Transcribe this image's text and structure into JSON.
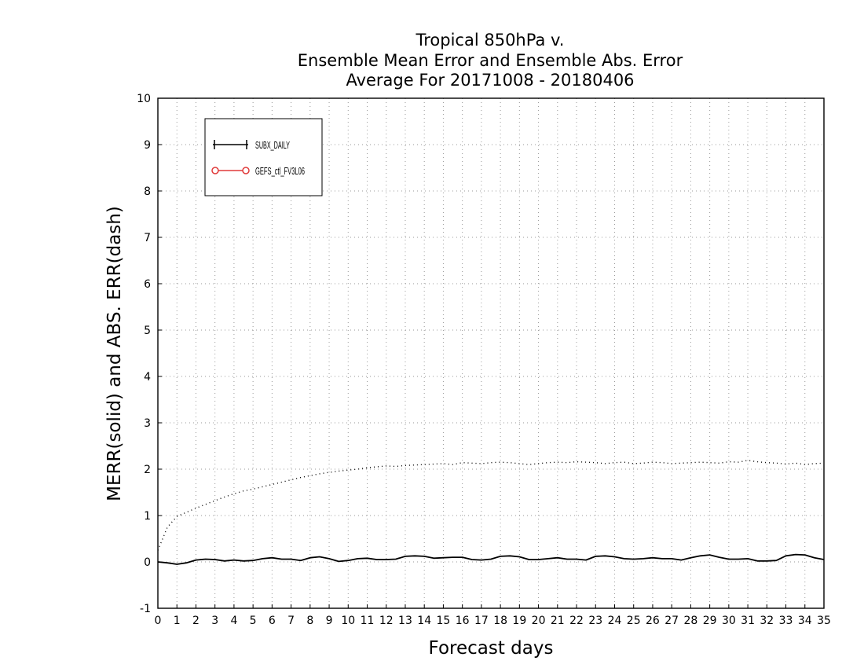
{
  "chart_data": {
    "type": "line",
    "title_lines": [
      "Tropical 850hPa v.",
      "Ensemble Mean Error and Ensemble Abs. Error",
      "Average For 20171008 - 20180406"
    ],
    "xlabel": "Forecast days",
    "ylabel": "MERR(solid) and ABS. ERR(dash)",
    "xlim": [
      0,
      35
    ],
    "ylim": [
      -1,
      10
    ],
    "xticks": [
      "0",
      "1",
      "2",
      "3",
      "4",
      "5",
      "6",
      "7",
      "8",
      "9",
      "10",
      "11",
      "12",
      "13",
      "14",
      "15",
      "16",
      "17",
      "18",
      "19",
      "20",
      "21",
      "22",
      "23",
      "24",
      "25",
      "26",
      "27",
      "28",
      "29",
      "30",
      "31",
      "32",
      "33",
      "34",
      "35"
    ],
    "yticks": [
      "-1",
      "0",
      "1",
      "2",
      "3",
      "4",
      "5",
      "6",
      "7",
      "8",
      "9",
      "10"
    ],
    "grid": true,
    "legend_position": "top-left",
    "legend": [
      {
        "label": "SUBX_DAILY",
        "color": "#000000",
        "marker": "plus"
      },
      {
        "label": "GEFS_ctl_FV3L06",
        "color": "#e03a3a",
        "marker": "circle"
      }
    ],
    "series": [
      {
        "name": "SUBX_DAILY",
        "style": "solid",
        "color": "#000000",
        "x": [
          0,
          0.5,
          1,
          1.5,
          2,
          2.5,
          3,
          3.5,
          4,
          4.5,
          5,
          5.5,
          6,
          6.5,
          7,
          7.5,
          8,
          8.5,
          9,
          9.5,
          10,
          10.5,
          11,
          11.5,
          12,
          12.5,
          13,
          13.5,
          14,
          14.5,
          15,
          15.5,
          16,
          16.5,
          17,
          17.5,
          18,
          18.5,
          19,
          19.5,
          20,
          20.5,
          21,
          21.5,
          22,
          22.5,
          23,
          23.5,
          24,
          24.5,
          25,
          25.5,
          26,
          26.5,
          27,
          27.5,
          28,
          28.5,
          29,
          29.5,
          30,
          30.5,
          31,
          31.5,
          32,
          32.5,
          33,
          33.5,
          34,
          34.5,
          35
        ],
        "y": [
          0.0,
          -0.02,
          -0.05,
          -0.02,
          0.04,
          0.06,
          0.05,
          0.02,
          0.04,
          0.02,
          0.03,
          0.07,
          0.09,
          0.06,
          0.06,
          0.03,
          0.09,
          0.11,
          0.07,
          0.01,
          0.03,
          0.07,
          0.08,
          0.05,
          0.05,
          0.06,
          0.12,
          0.13,
          0.12,
          0.08,
          0.09,
          0.1,
          0.1,
          0.05,
          0.04,
          0.06,
          0.12,
          0.13,
          0.11,
          0.05,
          0.05,
          0.07,
          0.09,
          0.06,
          0.06,
          0.04,
          0.12,
          0.13,
          0.11,
          0.07,
          0.06,
          0.07,
          0.09,
          0.07,
          0.07,
          0.04,
          0.09,
          0.13,
          0.15,
          0.1,
          0.06,
          0.06,
          0.07,
          0.02,
          0.02,
          0.03,
          0.13,
          0.16,
          0.15,
          0.09,
          0.05
        ]
      },
      {
        "name": "",
        "style": "dotted",
        "color": "#000000",
        "x": [
          0,
          0.5,
          1,
          1.5,
          2,
          2.5,
          3,
          3.5,
          4,
          4.5,
          5,
          5.5,
          6,
          6.5,
          7,
          7.5,
          8,
          8.5,
          9,
          9.5,
          10,
          10.5,
          11,
          11.5,
          12,
          12.5,
          13,
          13.5,
          14,
          14.5,
          15,
          15.5,
          16,
          16.5,
          17,
          17.5,
          18,
          18.5,
          19,
          19.5,
          20,
          20.5,
          21,
          21.5,
          22,
          22.5,
          23,
          23.5,
          24,
          24.5,
          25,
          25.5,
          26,
          26.5,
          27,
          27.5,
          28,
          28.5,
          29,
          29.5,
          30,
          30.5,
          31,
          31.5,
          32,
          32.5,
          33,
          33.5,
          34,
          34.5,
          35
        ],
        "y": [
          0.25,
          0.75,
          0.98,
          1.07,
          1.16,
          1.24,
          1.32,
          1.4,
          1.47,
          1.53,
          1.57,
          1.62,
          1.67,
          1.72,
          1.77,
          1.82,
          1.86,
          1.9,
          1.93,
          1.96,
          1.98,
          2.0,
          2.03,
          2.05,
          2.07,
          2.06,
          2.08,
          2.09,
          2.1,
          2.11,
          2.12,
          2.1,
          2.14,
          2.13,
          2.12,
          2.14,
          2.15,
          2.14,
          2.12,
          2.1,
          2.12,
          2.14,
          2.15,
          2.14,
          2.16,
          2.15,
          2.14,
          2.12,
          2.14,
          2.15,
          2.12,
          2.13,
          2.15,
          2.14,
          2.12,
          2.13,
          2.14,
          2.15,
          2.14,
          2.13,
          2.16,
          2.15,
          2.19,
          2.16,
          2.14,
          2.13,
          2.11,
          2.13,
          2.1,
          2.12,
          2.13
        ]
      }
    ]
  }
}
